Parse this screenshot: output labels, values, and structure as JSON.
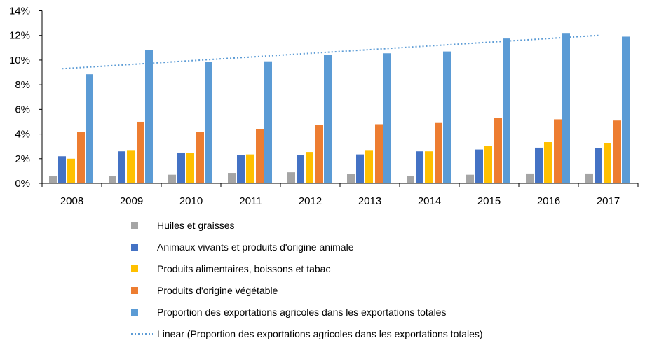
{
  "chart_data": {
    "type": "bar",
    "title": "",
    "xlabel": "",
    "ylabel": "",
    "ylim": [
      0,
      14
    ],
    "y_tick_labels": [
      "0%",
      "2%",
      "4%",
      "6%",
      "8%",
      "10%",
      "12%",
      "14%"
    ],
    "y_ticks": [
      0,
      2,
      4,
      6,
      8,
      10,
      12,
      14
    ],
    "grid": false,
    "legend_placement": "bottom",
    "categories": [
      "2008",
      "2009",
      "2010",
      "2011",
      "2012",
      "2013",
      "2014",
      "2015",
      "2016",
      "2017"
    ],
    "series": [
      {
        "name": "Huiles et graisses",
        "color": "#a5a5a5",
        "values": [
          0.57,
          0.6,
          0.7,
          0.85,
          0.9,
          0.75,
          0.6,
          0.7,
          0.8,
          0.8
        ]
      },
      {
        "name": "Animaux vivants et produits d'origine animale",
        "color": "#4472c4",
        "values": [
          2.2,
          2.6,
          2.5,
          2.3,
          2.3,
          2.35,
          2.6,
          2.75,
          2.9,
          2.85
        ]
      },
      {
        "name": "Produits alimentaires, boissons et tabac",
        "color": "#ffc000",
        "values": [
          2.0,
          2.65,
          2.45,
          2.35,
          2.55,
          2.65,
          2.6,
          3.05,
          3.35,
          3.25
        ]
      },
      {
        "name": "Produits d'origine végétable",
        "color": "#ed7d31",
        "values": [
          4.15,
          5.0,
          4.2,
          4.4,
          4.75,
          4.8,
          4.9,
          5.3,
          5.2,
          5.1
        ]
      },
      {
        "name": "Proportion des exportations agricoles dans les exportations totales",
        "color": "#5b9bd5",
        "values": [
          8.85,
          10.8,
          9.85,
          9.9,
          10.4,
          10.55,
          10.7,
          11.75,
          12.2,
          11.9
        ]
      }
    ],
    "trendline": {
      "name": "Linear (Proportion des exportations agricoles dans les exportations totales)",
      "color": "#5b9bd5",
      "style": "dotted",
      "start_value": 9.3,
      "end_value": 12.0
    }
  }
}
